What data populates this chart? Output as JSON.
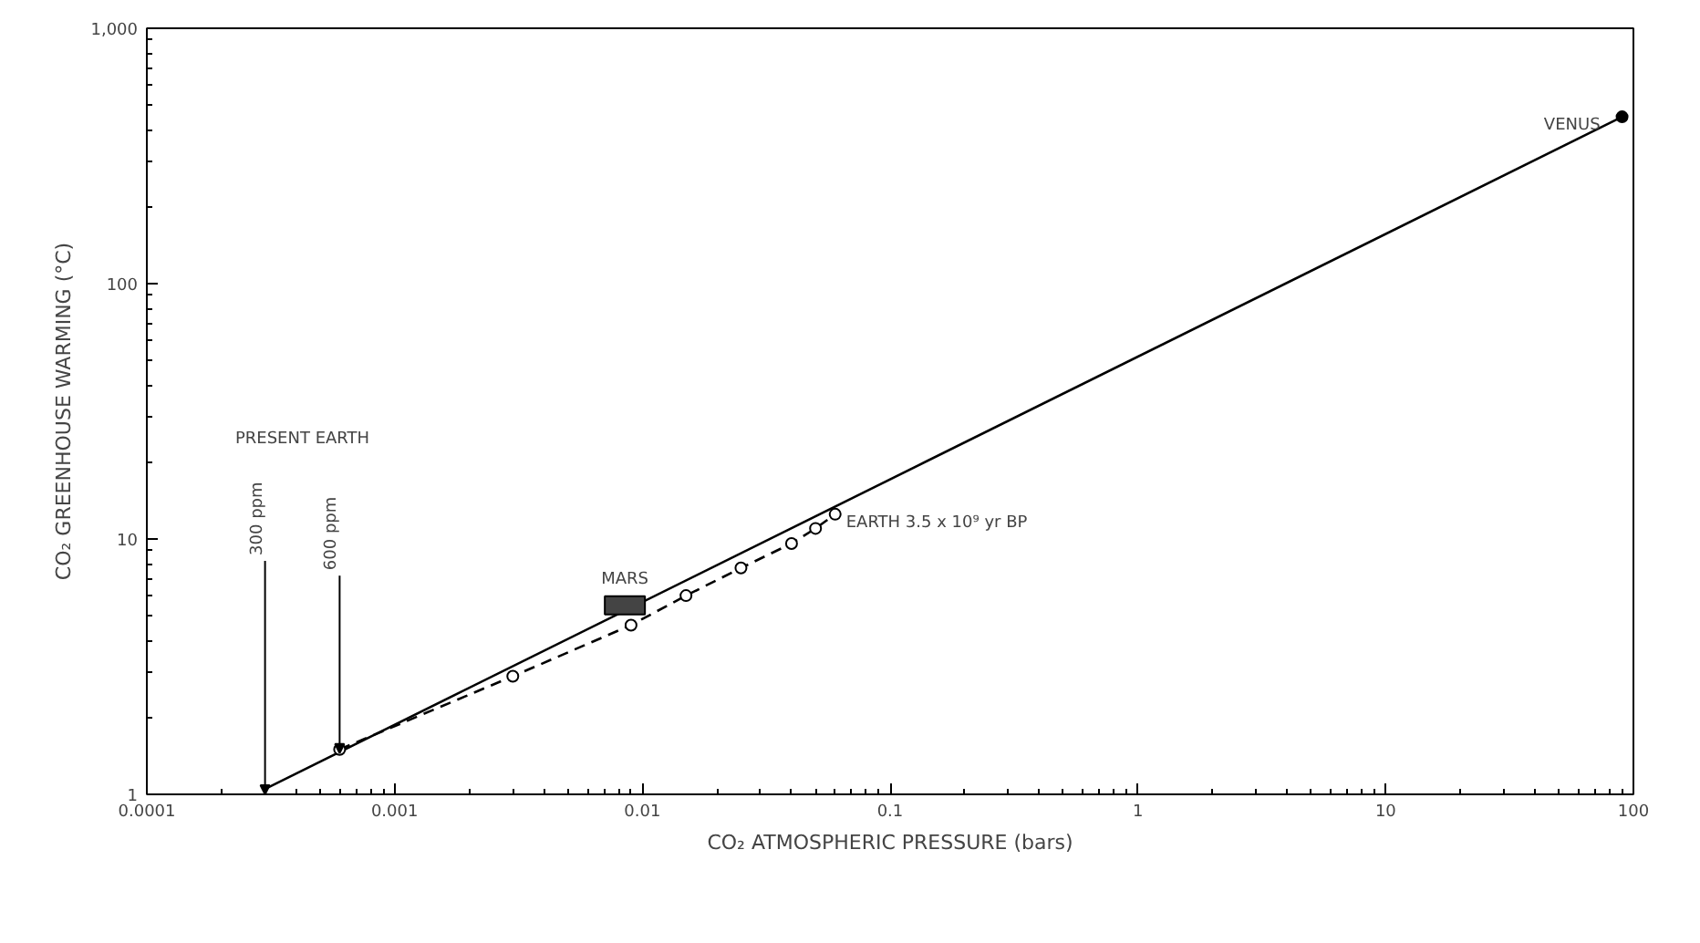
{
  "chart_data": {
    "type": "line",
    "xlabel": "CO₂ ATMOSPHERIC PRESSURE (bars)",
    "ylabel": "CO₂ GREENHOUSE WARMING (°C)",
    "log": "xy",
    "grid": false,
    "xlim": [
      0.0001,
      100
    ],
    "ylim": [
      1,
      1000
    ],
    "xticks": [
      0.0001,
      0.001,
      0.01,
      0.1,
      1,
      10,
      100
    ],
    "yticks": [
      1,
      10,
      100,
      {
        "value": 1000,
        "label": "1,000"
      }
    ],
    "series": [
      {
        "color": "#000000",
        "line_style": "solid",
        "x": [
          0.0003,
          90
        ],
        "values": [
          1.05,
          450
        ]
      },
      {
        "color": "#000000",
        "line_style": "dashed",
        "marker": "circle",
        "x": [
          0.0006,
          0.003,
          0.009,
          0.015,
          0.025,
          0.04,
          0.05,
          0.06
        ],
        "values": [
          1.5,
          2.9,
          4.6,
          6,
          7.7,
          9.6,
          11,
          12.5
        ]
      },
      {
        "type": "scatter",
        "color": "#000000",
        "marker": "square",
        "x": [
          0.0085
        ],
        "values": [
          5.5
        ]
      },
      {
        "type": "scatter",
        "color": "#000000",
        "marker": "circle",
        "x": [
          90
        ],
        "values": [
          450
        ]
      }
    ],
    "annotations": [
      "PRESENT EARTH",
      {
        "text": "300 ppm",
        "x": 0.0003,
        "y": 1
      },
      {
        "text": "600 ppm",
        "x": 0.0006,
        "y": 1.45
      },
      {
        "text": "MARS",
        "x": 0.0085,
        "y": 5.5
      },
      {
        "text": "EARTH 3.5 x 10⁹ yr BP",
        "x": 0.06,
        "y": 12.5
      },
      {
        "text": "VENUS",
        "x": 90,
        "y": 450
      }
    ]
  }
}
